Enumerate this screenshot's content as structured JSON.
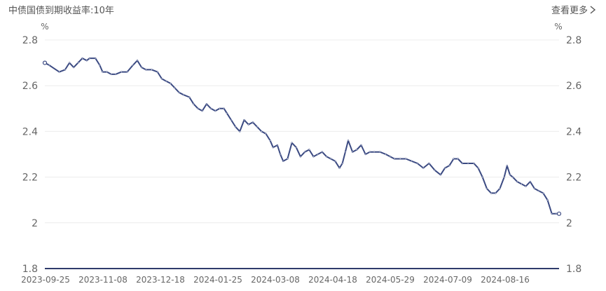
{
  "header": {
    "title": "中债国债到期收益率:10年",
    "more_label": "查看更多"
  },
  "colors": {
    "line": "#3b4a82",
    "grid": "#ececec",
    "axis": "#2f3b6b",
    "tick_text": "#666666"
  },
  "chart_data": {
    "type": "line",
    "title": "中债国债到期收益率:10年",
    "unit_left": "%",
    "unit_right": "%",
    "ylim": [
      1.8,
      2.8
    ],
    "yticks": [
      "1.8",
      "2",
      "2.2",
      "2.4",
      "2.6",
      "2.8"
    ],
    "ytick_values": [
      1.8,
      2.0,
      2.2,
      2.4,
      2.6,
      2.8
    ],
    "xticks": [
      "2023-09-25",
      "2023-11-08",
      "2023-12-18",
      "2024-01-25",
      "2024-03-08",
      "2024-04-18",
      "2024-05-29",
      "2024-07-09",
      "2024-08-16"
    ],
    "grid": true,
    "series": [
      {
        "values": [
          [
            "2023-09-25",
            2.7
          ],
          [
            "2023-09-28",
            2.69
          ],
          [
            "2023-10-05",
            2.66
          ],
          [
            "2023-10-09",
            2.67
          ],
          [
            "2023-10-12",
            2.7
          ],
          [
            "2023-10-15",
            2.68
          ],
          [
            "2023-10-18",
            2.7
          ],
          [
            "2023-10-21",
            2.72
          ],
          [
            "2023-10-24",
            2.71
          ],
          [
            "2023-10-26",
            2.72
          ],
          [
            "2023-10-30",
            2.72
          ],
          [
            "2023-11-02",
            2.69
          ],
          [
            "2023-11-04",
            2.66
          ],
          [
            "2023-11-07",
            2.66
          ],
          [
            "2023-11-10",
            2.65
          ],
          [
            "2023-11-13",
            2.65
          ],
          [
            "2023-11-17",
            2.66
          ],
          [
            "2023-11-21",
            2.66
          ],
          [
            "2023-11-25",
            2.69
          ],
          [
            "2023-11-28",
            2.71
          ],
          [
            "2023-12-01",
            2.68
          ],
          [
            "2023-12-04",
            2.67
          ],
          [
            "2023-12-08",
            2.67
          ],
          [
            "2023-12-12",
            2.66
          ],
          [
            "2023-12-15",
            2.63
          ],
          [
            "2023-12-18",
            2.62
          ],
          [
            "2023-12-21",
            2.61
          ],
          [
            "2023-12-24",
            2.59
          ],
          [
            "2023-12-27",
            2.57
          ],
          [
            "2023-12-30",
            2.56
          ],
          [
            "2024-01-03",
            2.55
          ],
          [
            "2024-01-06",
            2.52
          ],
          [
            "2024-01-09",
            2.5
          ],
          [
            "2024-01-12",
            2.49
          ],
          [
            "2024-01-15",
            2.52
          ],
          [
            "2024-01-18",
            2.5
          ],
          [
            "2024-01-21",
            2.49
          ],
          [
            "2024-01-24",
            2.5
          ],
          [
            "2024-01-27",
            2.5
          ],
          [
            "2024-01-29",
            2.48
          ],
          [
            "2024-02-01",
            2.45
          ],
          [
            "2024-02-04",
            2.42
          ],
          [
            "2024-02-07",
            2.4
          ],
          [
            "2024-02-10",
            2.45
          ],
          [
            "2024-02-13",
            2.43
          ],
          [
            "2024-02-16",
            2.44
          ],
          [
            "2024-02-19",
            2.42
          ],
          [
            "2024-02-22",
            2.4
          ],
          [
            "2024-02-25",
            2.39
          ],
          [
            "2024-02-28",
            2.36
          ],
          [
            "2024-03-01",
            2.33
          ],
          [
            "2024-03-04",
            2.34
          ],
          [
            "2024-03-06",
            2.3
          ],
          [
            "2024-03-08",
            2.27
          ],
          [
            "2024-03-11",
            2.28
          ],
          [
            "2024-03-14",
            2.35
          ],
          [
            "2024-03-17",
            2.33
          ],
          [
            "2024-03-20",
            2.29
          ],
          [
            "2024-03-23",
            2.31
          ],
          [
            "2024-03-26",
            2.32
          ],
          [
            "2024-03-29",
            2.29
          ],
          [
            "2024-04-01",
            2.3
          ],
          [
            "2024-04-04",
            2.31
          ],
          [
            "2024-04-07",
            2.29
          ],
          [
            "2024-04-10",
            2.28
          ],
          [
            "2024-04-13",
            2.27
          ],
          [
            "2024-04-16",
            2.24
          ],
          [
            "2024-04-18",
            2.26
          ],
          [
            "2024-04-20",
            2.31
          ],
          [
            "2024-04-22",
            2.36
          ],
          [
            "2024-04-25",
            2.31
          ],
          [
            "2024-04-28",
            2.32
          ],
          [
            "2024-05-01",
            2.34
          ],
          [
            "2024-05-04",
            2.3
          ],
          [
            "2024-05-07",
            2.31
          ],
          [
            "2024-05-10",
            2.31
          ],
          [
            "2024-05-14",
            2.31
          ],
          [
            "2024-05-18",
            2.3
          ],
          [
            "2024-05-21",
            2.29
          ],
          [
            "2024-05-24",
            2.28
          ],
          [
            "2024-05-28",
            2.28
          ],
          [
            "2024-06-01",
            2.28
          ],
          [
            "2024-06-05",
            2.27
          ],
          [
            "2024-06-09",
            2.26
          ],
          [
            "2024-06-13",
            2.24
          ],
          [
            "2024-06-17",
            2.26
          ],
          [
            "2024-06-21",
            2.23
          ],
          [
            "2024-06-25",
            2.21
          ],
          [
            "2024-06-28",
            2.24
          ],
          [
            "2024-07-01",
            2.25
          ],
          [
            "2024-07-04",
            2.28
          ],
          [
            "2024-07-07",
            2.28
          ],
          [
            "2024-07-10",
            2.26
          ],
          [
            "2024-07-14",
            2.26
          ],
          [
            "2024-07-18",
            2.26
          ],
          [
            "2024-07-21",
            2.24
          ],
          [
            "2024-07-24",
            2.2
          ],
          [
            "2024-07-27",
            2.15
          ],
          [
            "2024-07-30",
            2.13
          ],
          [
            "2024-08-02",
            2.13
          ],
          [
            "2024-08-05",
            2.15
          ],
          [
            "2024-08-08",
            2.2
          ],
          [
            "2024-08-10",
            2.25
          ],
          [
            "2024-08-12",
            2.21
          ],
          [
            "2024-08-14",
            2.2
          ],
          [
            "2024-08-17",
            2.18
          ],
          [
            "2024-08-20",
            2.17
          ],
          [
            "2024-08-23",
            2.16
          ],
          [
            "2024-08-26",
            2.18
          ],
          [
            "2024-08-29",
            2.15
          ],
          [
            "2024-09-01",
            2.14
          ],
          [
            "2024-09-04",
            2.13
          ],
          [
            "2024-09-07",
            2.1
          ],
          [
            "2024-09-10",
            2.04
          ],
          [
            "2024-09-13",
            2.04
          ],
          [
            "2024-09-15",
            2.04
          ]
        ]
      }
    ]
  }
}
